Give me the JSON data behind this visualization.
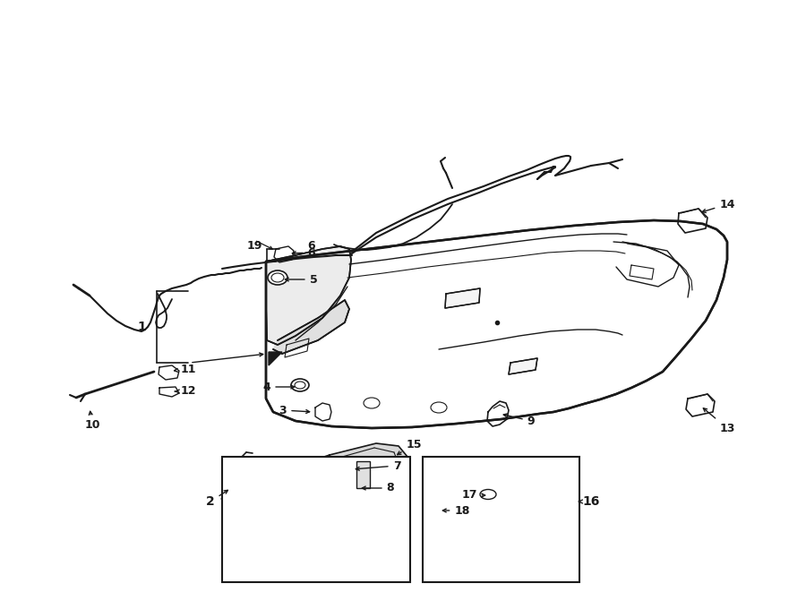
{
  "bg_color": "#ffffff",
  "line_color": "#1a1a1a",
  "text_color": "#1a1a1a",
  "fig_width": 9.0,
  "fig_height": 6.61,
  "dpi": 100
}
